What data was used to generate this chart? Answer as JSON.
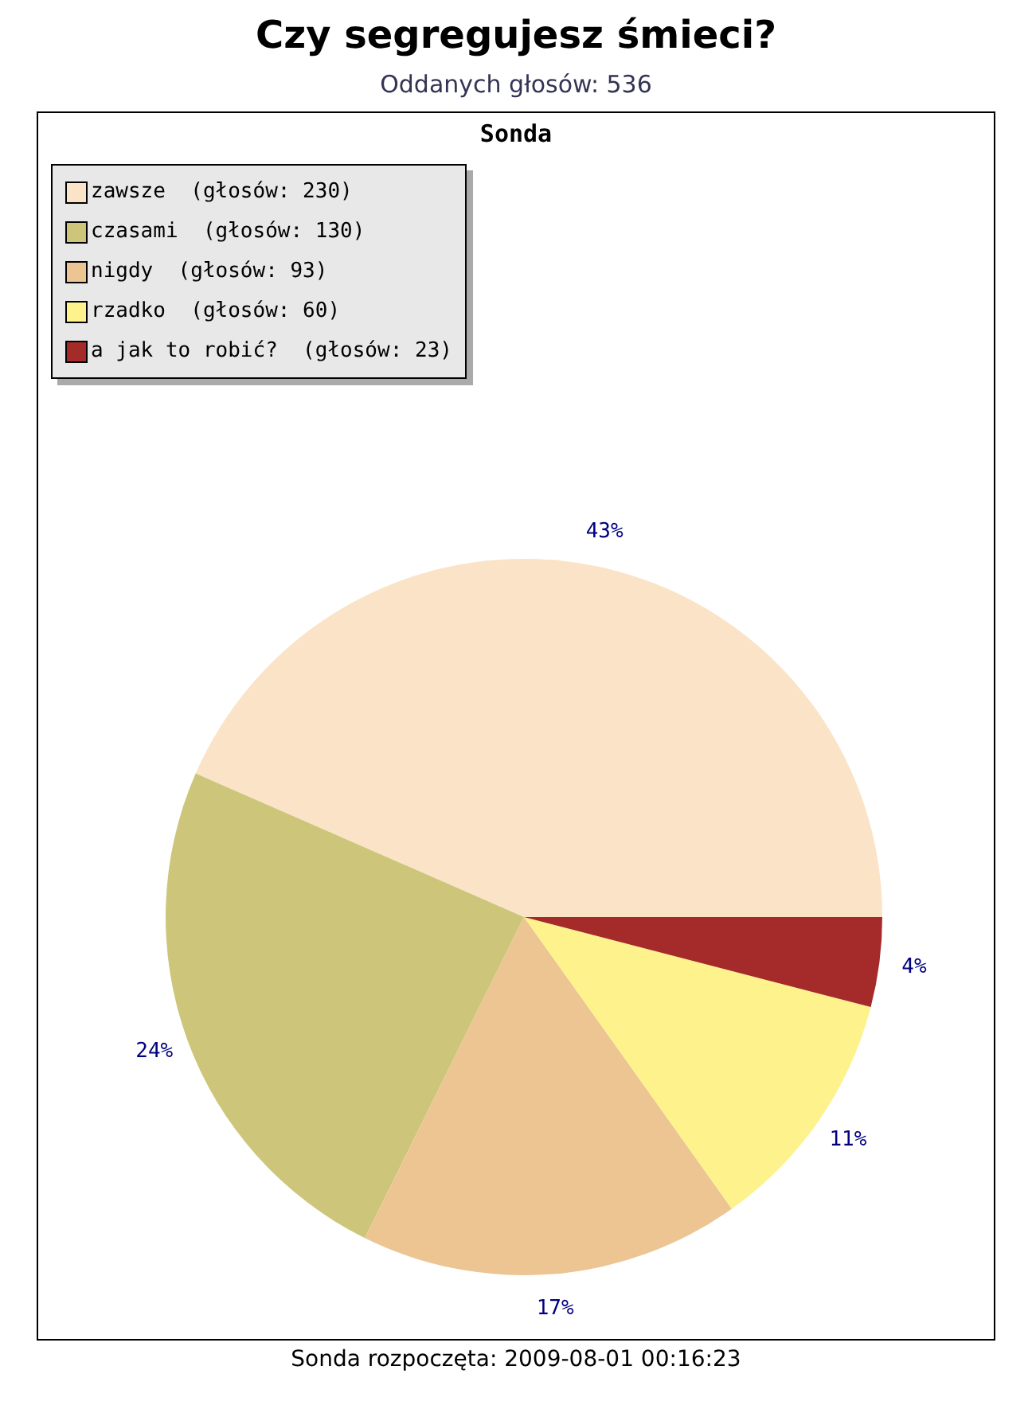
{
  "chart_data": {
    "type": "pie",
    "title": "Czy segregujesz śmieci?",
    "subtitle": "Oddanych głosów: 536",
    "annotations": [
      "Sonda",
      "Sonda rozpoczęta: 2009-08-01 00:16:23"
    ],
    "categories": [
      "zawsze  (głosów: 230)",
      "czasami  (głosów: 130)",
      "nigdy  (głosów: 93)",
      "rzadko  (głosów: 60)",
      "a jak to robić?  (głosów: 23)"
    ],
    "values": [
      43,
      24,
      17,
      11,
      4
    ],
    "colors": [
      "#fbe3c7",
      "#cdc67a",
      "#ecc592",
      "#fdf28c",
      "#a52a2a"
    ],
    "value_labels": [
      "43%",
      "24%",
      "17%",
      "11%",
      "4%"
    ],
    "legend": "top left"
  }
}
